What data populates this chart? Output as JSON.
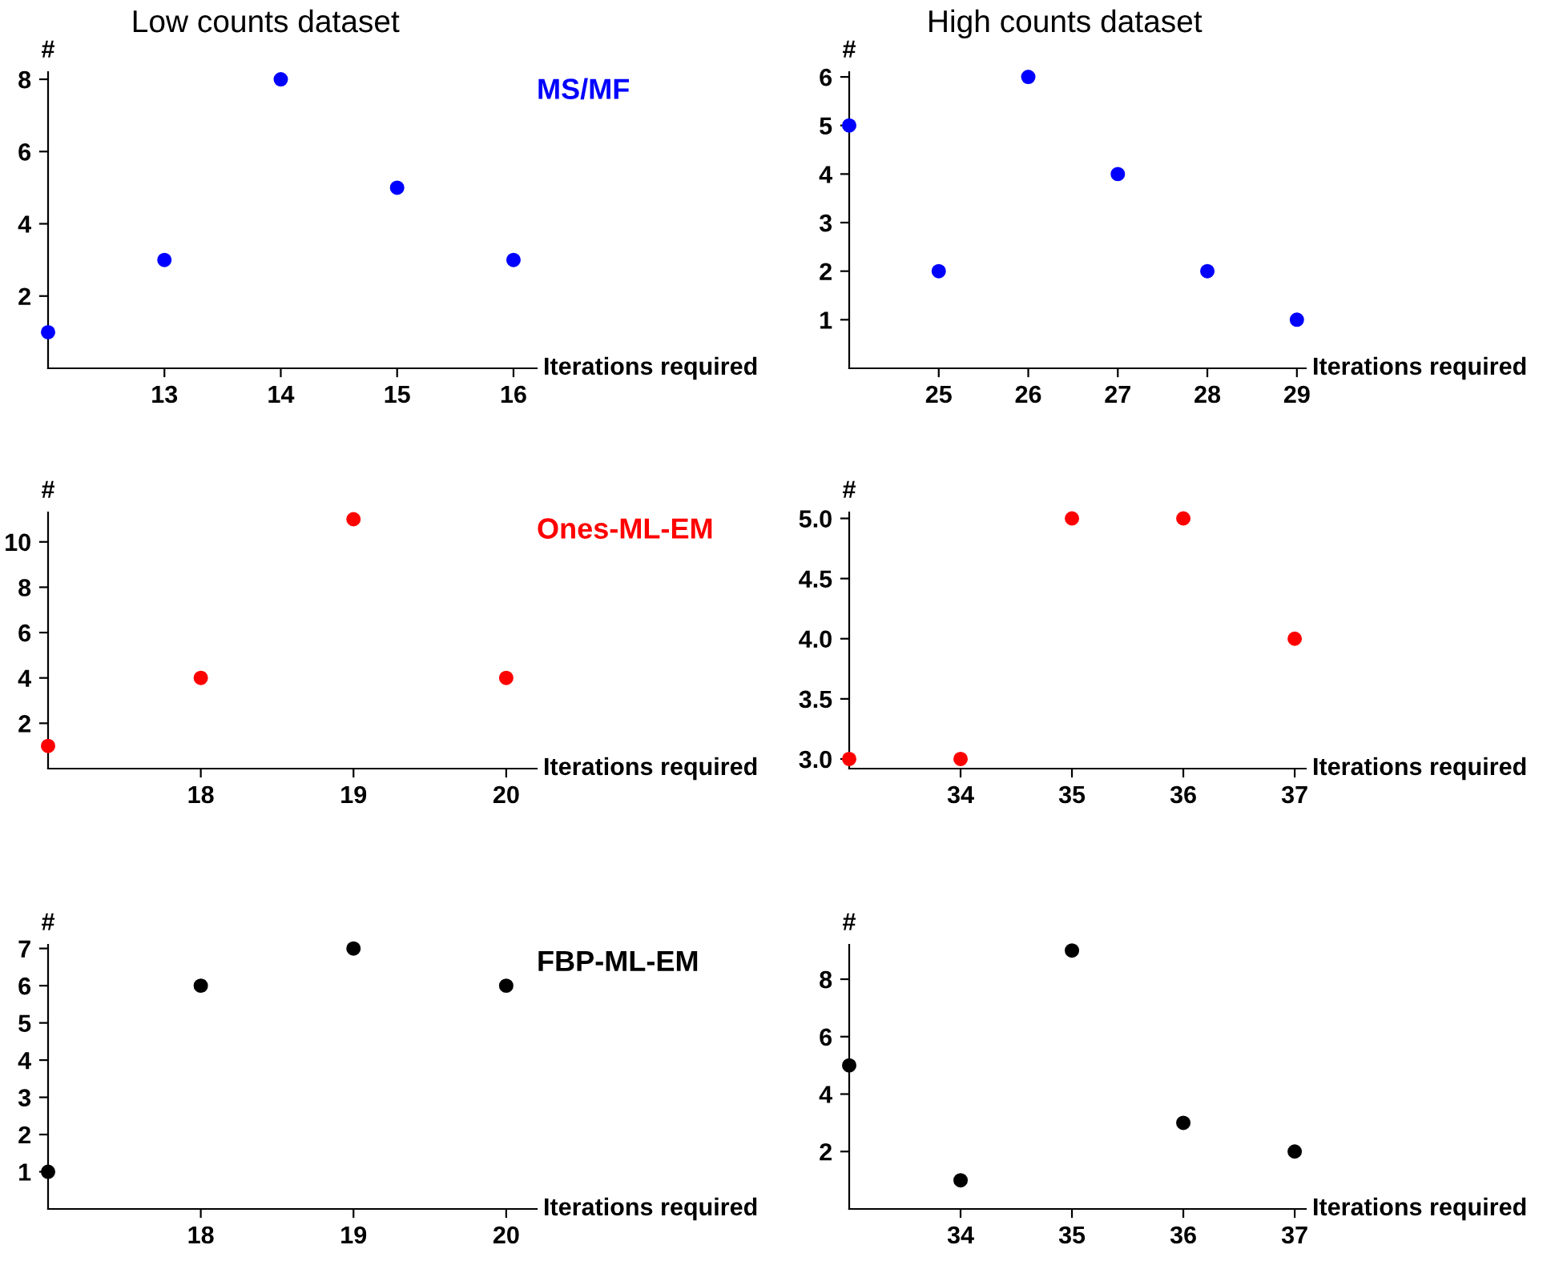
{
  "chart_data": [
    {
      "type": "scatter",
      "title": "Low counts dataset",
      "xlabel": "Iterations required",
      "ylabel": "#",
      "x": [
        12,
        13,
        14,
        15,
        16
      ],
      "marker": "circle",
      "series": [
        {
          "name": "MS/MF",
          "color": "#0000ff",
          "values": [
            1,
            3,
            8,
            5,
            3
          ]
        }
      ],
      "xlim": [
        12,
        16.2
      ],
      "ylim": [
        0,
        8.2
      ],
      "xticks": [
        13,
        14,
        15,
        16
      ],
      "yticks": [
        2,
        4,
        6,
        8
      ],
      "grid": false
    },
    {
      "type": "scatter",
      "title": "High counts dataset",
      "xlabel": "Iterations required",
      "ylabel": "#",
      "x": [
        24,
        25,
        26,
        27,
        28,
        29
      ],
      "marker": "circle",
      "series": [
        {
          "color": "#0000ff",
          "values": [
            5,
            2,
            6,
            4,
            2,
            1
          ]
        }
      ],
      "xlim": [
        24,
        29.1
      ],
      "ylim": [
        0,
        6.1
      ],
      "xticks": [
        25,
        26,
        27,
        28,
        29
      ],
      "yticks": [
        1,
        2,
        3,
        4,
        5,
        6
      ],
      "grid": false
    },
    {
      "type": "scatter",
      "xlabel": "Iterations required",
      "ylabel": "#",
      "x": [
        17,
        18,
        19,
        20
      ],
      "marker": "circle",
      "series": [
        {
          "name": "Ones-ML-EM",
          "color": "#ff0000",
          "values": [
            1,
            4,
            11,
            4
          ]
        }
      ],
      "xlim": [
        17,
        20.2
      ],
      "ylim": [
        0,
        11.3
      ],
      "xticks": [
        18,
        19,
        20
      ],
      "yticks": [
        2,
        4,
        6,
        8,
        10
      ],
      "grid": false
    },
    {
      "type": "scatter",
      "xlabel": "Iterations required",
      "ylabel": "#",
      "x": [
        33,
        34,
        35,
        36,
        37
      ],
      "marker": "circle",
      "series": [
        {
          "color": "#ff0000",
          "values": [
            3,
            3,
            5,
            5,
            4
          ]
        }
      ],
      "xlim": [
        33,
        37.1
      ],
      "ylim": [
        2.92,
        5.05
      ],
      "xticks": [
        34,
        35,
        36,
        37
      ],
      "yticks": [
        {
          "value": 3,
          "label": "3.0"
        },
        3.5,
        {
          "value": 4,
          "label": "4.0"
        },
        4.5,
        {
          "value": 5,
          "label": "5.0"
        }
      ],
      "grid": false
    },
    {
      "type": "scatter",
      "xlabel": "Iterations required",
      "ylabel": "#",
      "x": [
        17,
        18,
        19,
        20
      ],
      "marker": "circle",
      "series": [
        {
          "name": "FBP-ML-EM",
          "color": "#000000",
          "values": [
            1,
            6,
            7,
            6
          ]
        }
      ],
      "xlim": [
        17,
        20.2
      ],
      "ylim": [
        0,
        7.1
      ],
      "xticks": [
        18,
        19,
        20
      ],
      "yticks": [
        1,
        2,
        3,
        4,
        5,
        6,
        7
      ],
      "grid": false
    },
    {
      "type": "scatter",
      "xlabel": "Iterations required",
      "ylabel": "#",
      "x": [
        33,
        34,
        35,
        36,
        37
      ],
      "marker": "circle",
      "series": [
        {
          "color": "#000000",
          "values": [
            5,
            1,
            9,
            3,
            2
          ]
        }
      ],
      "xlim": [
        33,
        37.1
      ],
      "ylim": [
        0,
        9.2
      ],
      "xticks": [
        34,
        35,
        36,
        37
      ],
      "yticks": [
        2,
        4,
        6,
        8
      ],
      "grid": false
    }
  ]
}
